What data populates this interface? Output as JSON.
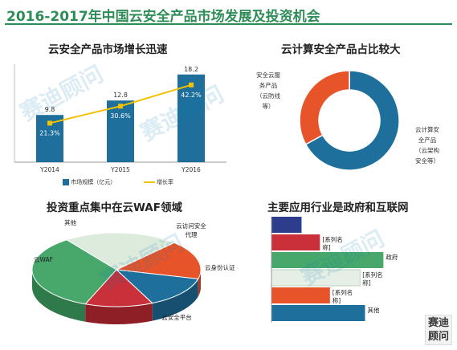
{
  "page": {
    "title": "2016-2017年中国云安全产品市场发展及投资机会",
    "watermark": "赛迪顾问",
    "logo": "赛迪顾问",
    "colors": {
      "title_green": "#2E8C57",
      "blue": "#1F6F9C",
      "line_yellow": "#F2C100",
      "orange": "#E8542A",
      "green": "#48A86B",
      "red": "#C9303A",
      "navy": "#2E3C8C",
      "light_green": "#DCEBDC"
    }
  },
  "chart_data": [
    {
      "type": "bar",
      "title": "云安全产品市场增长迅速",
      "categories": [
        "Y2014",
        "Y2015",
        "Y2016"
      ],
      "series": [
        {
          "name": "市场规模（亿元）",
          "values": [
            9.8,
            12.8,
            18.2
          ]
        },
        {
          "name": "增长率",
          "values": [
            21.3,
            30.6,
            42.2
          ],
          "labels": [
            "21.3%",
            "30.6%",
            "42.2%"
          ]
        }
      ],
      "ylim": [
        0,
        20
      ],
      "grid": false,
      "legend": "bottom"
    },
    {
      "type": "pie",
      "title": "云计算安全产品占比较大",
      "donut": true,
      "slices": [
        {
          "label_lines": [
            "云计算安",
            "全产品",
            "（云架构",
            "安全等）"
          ],
          "value": 67
        },
        {
          "label_lines": [
            "安全云服",
            "务产品",
            "（云防线",
            "等）"
          ],
          "value": 33
        }
      ]
    },
    {
      "type": "pie",
      "title": "投资重点集中在云WAF领域",
      "slices": [
        {
          "label": "云WAF",
          "value": 34
        },
        {
          "label": "云安全平台",
          "value": 22
        },
        {
          "label": "云身份认证",
          "value": 17
        },
        {
          "label_lines": [
            "云访问安全",
            "代理"
          ],
          "value": 14
        },
        {
          "label": "其他",
          "value": 13
        }
      ]
    },
    {
      "type": "bar",
      "orientation": "horizontal",
      "title": "主要应用行业是政府和互联网",
      "categories": [
        "政府",
        "其他"
      ],
      "bars": [
        {
          "value": 0.18,
          "category_label": []
        },
        {
          "value": 0.29,
          "category_label": [
            "[系列名",
            "称]"
          ]
        },
        {
          "value": 0.67,
          "category_label": [
            "政府"
          ]
        },
        {
          "value": 0.53,
          "category_label": [
            "[系列名",
            "称]"
          ]
        },
        {
          "value": 0.35,
          "category_label": [
            "[系列名",
            "称]"
          ]
        },
        {
          "value": 0.56,
          "category_label": [
            "其他"
          ]
        }
      ],
      "xlim": [
        0,
        1
      ]
    }
  ]
}
